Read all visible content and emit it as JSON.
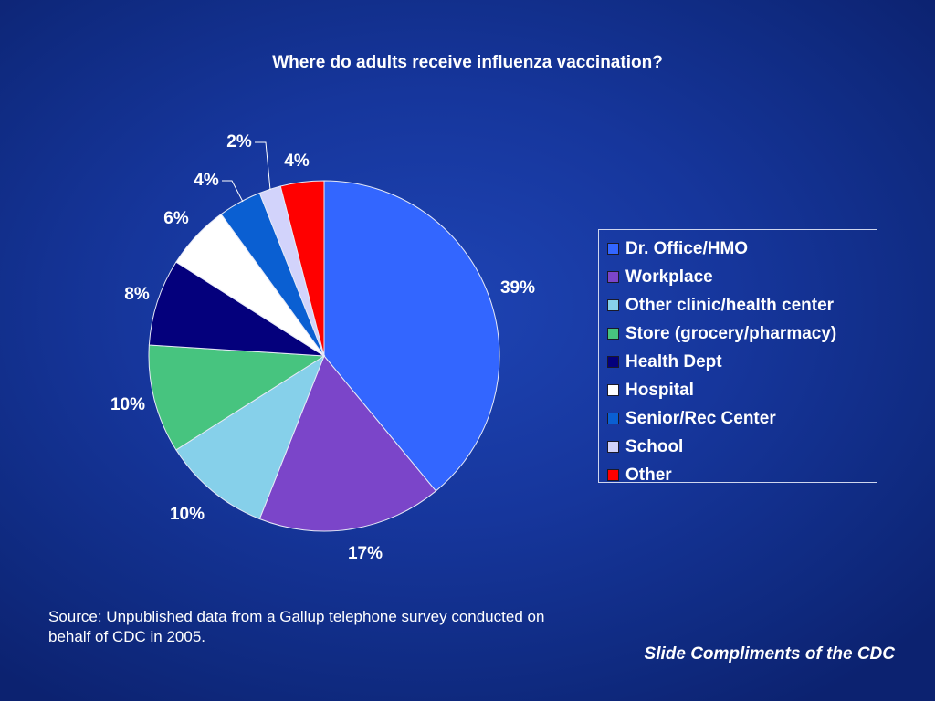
{
  "chart_data": {
    "type": "pie",
    "title": "Where do adults receive influenza vaccination?",
    "start_angle_deg": 0,
    "direction": "clockwise",
    "slices": [
      {
        "name": "Dr. Office/HMO",
        "value": 39,
        "label": "39%",
        "color": "#3366ff"
      },
      {
        "name": "Workplace",
        "value": 17,
        "label": "17%",
        "color": "#7b45c9"
      },
      {
        "name": "Other clinic/health center",
        "value": 10,
        "label": "10%",
        "color": "#86d0ea"
      },
      {
        "name": "Store (grocery/pharmacy)",
        "value": 10,
        "label": "10%",
        "color": "#47c47f"
      },
      {
        "name": "Health Dept",
        "value": 8,
        "label": "8%",
        "color": "#04007c"
      },
      {
        "name": "Hospital",
        "value": 6,
        "label": "6%",
        "color": "#ffffff"
      },
      {
        "name": "Senior/Rec Center",
        "value": 4,
        "label": "4%",
        "color": "#0a5fd2"
      },
      {
        "name": "School",
        "value": 2,
        "label": "2%",
        "color": "#d2d3fb"
      },
      {
        "name": "Other",
        "value": 4,
        "label": "4%",
        "color": "#ff0000"
      }
    ],
    "legend_position": "right"
  },
  "footer": {
    "source": "Source:  Unpublished data from a Gallup telephone survey conducted on behalf of CDC in 2005.",
    "credit": "Slide Compliments of the CDC"
  }
}
